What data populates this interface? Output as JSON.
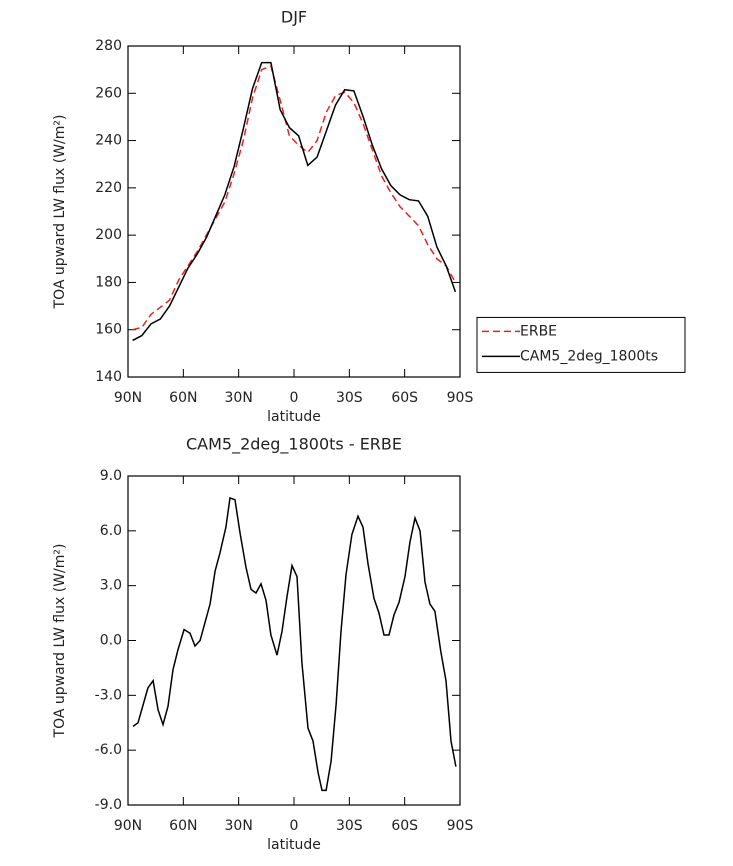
{
  "chart_data": [
    {
      "type": "line",
      "title": "DJF",
      "xlabel": "latitude",
      "ylabel": "TOA upward LW flux (W/m²)",
      "x": [
        87.5,
        82.5,
        77.5,
        72.5,
        67.5,
        62.5,
        57.5,
        52.5,
        47.5,
        42.5,
        37.5,
        32.5,
        27.5,
        22.5,
        17.5,
        12.5,
        7.5,
        2.5,
        -2.5,
        -7.5,
        -12.5,
        -17.5,
        -22.5,
        -27.5,
        -32.5,
        -37.5,
        -42.5,
        -47.5,
        -52.5,
        -57.5,
        -62.5,
        -67.5,
        -72.5,
        -77.5,
        -82.5,
        -87.5
      ],
      "series": [
        {
          "name": "ERBE",
          "color": "#e8231e",
          "dash": "dashed",
          "values": [
            160,
            161,
            166.5,
            169.5,
            172.5,
            181,
            187,
            193,
            200,
            207,
            214,
            226,
            240,
            258,
            270,
            271.5,
            257,
            242,
            238,
            235,
            240,
            252,
            259,
            260.5,
            256,
            247,
            236,
            225,
            218,
            212,
            208,
            204,
            196,
            190,
            187,
            180
          ]
        },
        {
          "name": "CAM5_2deg_1800ts",
          "color": "#000000",
          "dash": "solid",
          "values": [
            155.5,
            157.5,
            162.5,
            164.5,
            170,
            178,
            186,
            192,
            199,
            208,
            217,
            229,
            245,
            262,
            273,
            273,
            253,
            245.5,
            242,
            229.5,
            233,
            244,
            255,
            261.5,
            261,
            250,
            238,
            228,
            221,
            217,
            215,
            214.5,
            208,
            195,
            187,
            176
          ]
        }
      ],
      "xlim": [
        90,
        -90
      ],
      "xticks": [
        {
          "value": 90,
          "label": "90N"
        },
        {
          "value": 60,
          "label": "60N"
        },
        {
          "value": 30,
          "label": "30N"
        },
        0,
        {
          "value": -30,
          "label": "30S"
        },
        {
          "value": -60,
          "label": "60S"
        },
        {
          "value": -90,
          "label": "90S"
        }
      ],
      "ylim": [
        140,
        280
      ],
      "yticks": [
        140,
        160,
        180,
        200,
        220,
        240,
        260,
        280
      ],
      "legend": "right"
    },
    {
      "type": "line",
      "title": "CAM5_2deg_1800ts - ERBE",
      "xlabel": "latitude",
      "ylabel": "TOA upward LW flux (W/m²)",
      "x": [
        87.3,
        84.6,
        79.2,
        76.4,
        73.7,
        71.0,
        68.3,
        65.6,
        62.9,
        59.6,
        56.4,
        53.7,
        50.9,
        48.2,
        45.5,
        42.8,
        40.1,
        36.9,
        34.7,
        32.0,
        29.3,
        26.0,
        23.3,
        20.6,
        17.9,
        15.2,
        12.5,
        9.2,
        6.5,
        3.8,
        1.1,
        -1.6,
        -4.3,
        -7.6,
        -10.3,
        -13.0,
        -15.2,
        -17.4,
        -20.1,
        -22.8,
        -25.5,
        -28.2,
        -31.4,
        -34.7,
        -37.4,
        -40.1,
        -43.4,
        -46.1,
        -48.8,
        -51.5,
        -54.2,
        -57.0,
        -60.2,
        -62.9,
        -65.6,
        -68.3,
        -71.0,
        -73.7,
        -76.4,
        -79.6,
        -82.4,
        -85.1,
        -87.8
      ],
      "values": [
        -4.7,
        -4.5,
        -2.6,
        -2.2,
        -3.8,
        -4.6,
        -3.6,
        -1.6,
        -0.5,
        0.6,
        0.4,
        -0.3,
        0,
        1,
        2,
        3.8,
        4.8,
        6.2,
        7.8,
        7.7,
        5.9,
        4,
        2.8,
        2.6,
        3.1,
        2.2,
        0.3,
        -0.8,
        0.5,
        2.4,
        4.1,
        3.5,
        -1.2,
        -4.8,
        -5.5,
        -7.2,
        -8.2,
        -8.2,
        -6.6,
        -3.5,
        0.5,
        3.6,
        5.8,
        6.8,
        6.2,
        4.2,
        2.3,
        1.5,
        0.3,
        0.3,
        1.4,
        2.1,
        3.5,
        5.4,
        6.7,
        6,
        3.2,
        2,
        1.6,
        -0.6,
        -2.2,
        -5.5,
        -6.9
      ],
      "color": "#000000",
      "xlim": [
        90,
        -90
      ],
      "xticks": [
        {
          "value": 90,
          "label": "90N"
        },
        {
          "value": 60,
          "label": "60N"
        },
        {
          "value": 30,
          "label": "30N"
        },
        0,
        {
          "value": -30,
          "label": "30S"
        },
        {
          "value": -60,
          "label": "60S"
        },
        {
          "value": -90,
          "label": "90S"
        }
      ],
      "ylim": [
        -9,
        9
      ],
      "yticks": [
        {
          "value": -9,
          "label": "-9.0"
        },
        {
          "value": -6,
          "label": "-6.0"
        },
        {
          "value": -3,
          "label": "-3.0"
        },
        {
          "value": 0,
          "label": "0.0"
        },
        {
          "value": 3,
          "label": "3.0"
        },
        {
          "value": 6,
          "label": "6.0"
        },
        {
          "value": 9,
          "label": "9.0"
        }
      ]
    }
  ]
}
